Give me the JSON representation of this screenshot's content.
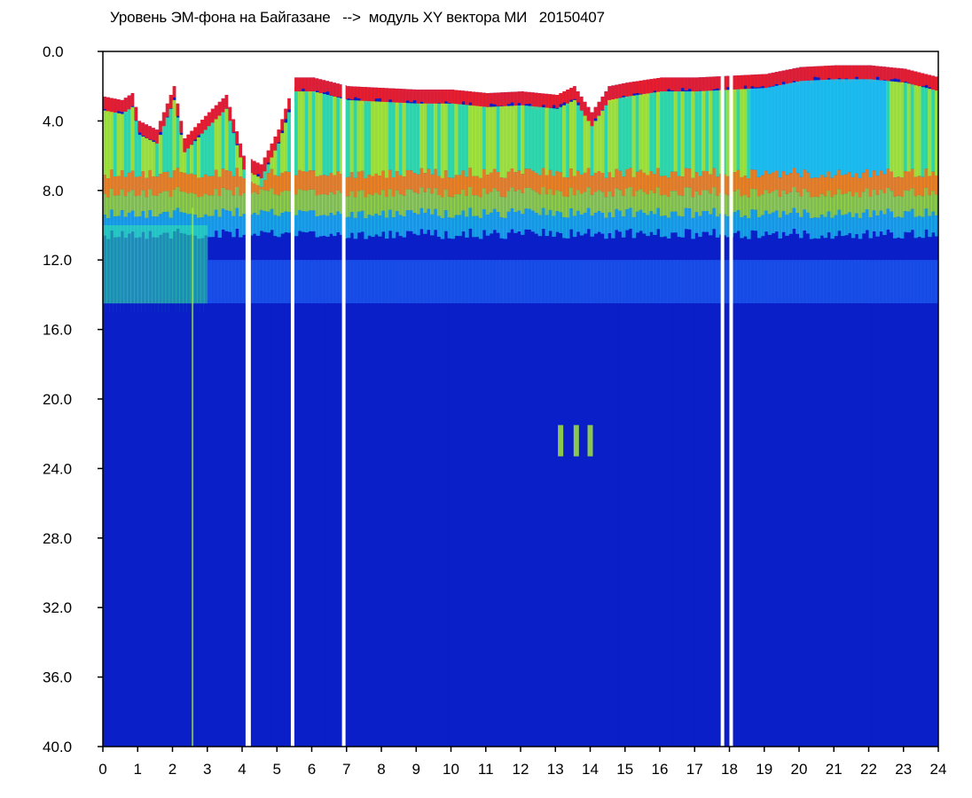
{
  "chart_data": {
    "type": "heatmap",
    "title": "Уровень ЭМ-фона на Байгазане   -->  модуль XY вектора МИ   20150407",
    "xlabel": "",
    "ylabel": "",
    "x_ticks": [
      "0",
      "1",
      "2",
      "3",
      "4",
      "5",
      "6",
      "7",
      "8",
      "9",
      "10",
      "11",
      "12",
      "13",
      "14",
      "15",
      "16",
      "17",
      "18",
      "19",
      "20",
      "21",
      "22",
      "23",
      "24"
    ],
    "y_ticks": [
      "0.0",
      "4.0",
      "8.0",
      "12.0",
      "16.0",
      "20.0",
      "24.0",
      "28.0",
      "32.0",
      "36.0",
      "40.0"
    ],
    "xlim": [
      0,
      24
    ],
    "ylim": [
      0,
      40
    ],
    "y_inverted": true,
    "grid": false,
    "colorscale": [
      "#0a1fc8",
      "#1e5af0",
      "#1ec8f0",
      "#32e6aa",
      "#aaf032",
      "#f0f014",
      "#ff8c14",
      "#ff1e1e",
      "#ffe6e6",
      "#ffffff"
    ],
    "background_level_top": [
      [
        0.0,
        2.6
      ],
      [
        0.5,
        2.8
      ],
      [
        0.8,
        2.4
      ],
      [
        1.0,
        4.0
      ],
      [
        1.5,
        4.5
      ],
      [
        2.0,
        2.0
      ],
      [
        2.3,
        5.0
      ],
      [
        3.0,
        3.5
      ],
      [
        3.5,
        2.5
      ],
      [
        4.0,
        6.0
      ],
      [
        4.5,
        6.5
      ],
      [
        5.0,
        4.5
      ],
      [
        5.5,
        1.5
      ],
      [
        6.0,
        1.5
      ],
      [
        7.0,
        2.0
      ],
      [
        8.0,
        2.1
      ],
      [
        9.0,
        2.2
      ],
      [
        10.0,
        2.2
      ],
      [
        11.0,
        2.4
      ],
      [
        12.0,
        2.3
      ],
      [
        13.0,
        2.5
      ],
      [
        13.5,
        2.0
      ],
      [
        14.0,
        3.5
      ],
      [
        14.5,
        2.0
      ],
      [
        15.0,
        1.8
      ],
      [
        16.0,
        1.5
      ],
      [
        17.0,
        1.5
      ],
      [
        18.0,
        1.4
      ],
      [
        19.0,
        1.3
      ],
      [
        20.0,
        0.9
      ],
      [
        21.0,
        0.8
      ],
      [
        22.0,
        0.8
      ],
      [
        23.0,
        1.0
      ],
      [
        24.0,
        1.5
      ]
    ],
    "band_lower_edge": 8.5,
    "secondary_band": [
      11.5,
      14.5
    ],
    "data_gaps_hours": [
      4.15,
      4.2,
      5.45,
      6.92,
      17.8,
      18.05
    ]
  }
}
